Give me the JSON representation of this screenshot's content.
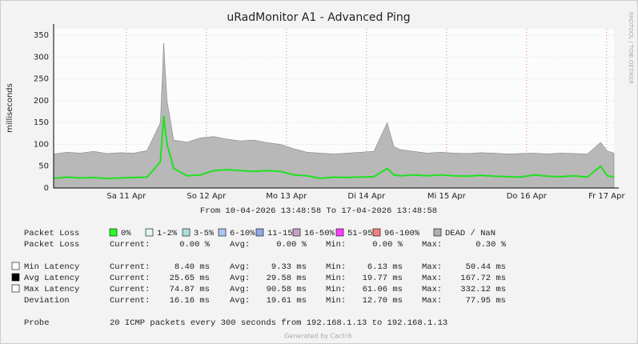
{
  "chart_data": {
    "type": "line",
    "title": "uRadMonitor A1 - Advanced Ping",
    "y_label": "milliseconds",
    "side_label": "RRDTOOL / TOBI OETIKER",
    "period": "From 10-04-2026 13:48:58 To 17-04-2026 13:48:58",
    "footer": "Generated by Cacti®",
    "xlim": [
      0,
      168
    ],
    "xticks": [
      {
        "value": 21.8,
        "label": "Sa 11 Apr"
      },
      {
        "value": 45.8,
        "label": "So 12 Apr"
      },
      {
        "value": 69.8,
        "label": "Mo 13 Apr"
      },
      {
        "value": 93.8,
        "label": "Di 14 Apr"
      },
      {
        "value": 117.8,
        "label": "Mi 15 Apr"
      },
      {
        "value": 141.8,
        "label": "Do 16 Apr"
      },
      {
        "value": 165.8,
        "label": "Fr 17 Apr"
      }
    ],
    "ylim": [
      0,
      365
    ],
    "yticks": [
      0,
      50,
      100,
      150,
      200,
      250,
      300,
      350
    ],
    "grid": true,
    "x": [
      0,
      4,
      8,
      12,
      16,
      20,
      24,
      28,
      32,
      33,
      34,
      36,
      40,
      44,
      48,
      52,
      56,
      60,
      64,
      68,
      72,
      76,
      80,
      84,
      88,
      92,
      96,
      100,
      102,
      104,
      108,
      112,
      116,
      120,
      124,
      128,
      132,
      136,
      140,
      144,
      148,
      152,
      156,
      160,
      164,
      166,
      168
    ],
    "series": [
      {
        "color": "#b8b8b8",
        "values": [
          78,
          82,
          80,
          84,
          79,
          81,
          80,
          86,
          150,
          332,
          200,
          110,
          105,
          115,
          118,
          112,
          108,
          110,
          104,
          100,
          90,
          82,
          80,
          78,
          80,
          82,
          84,
          150,
          95,
          88,
          84,
          80,
          82,
          80,
          79,
          81,
          80,
          78,
          79,
          80,
          78,
          80,
          79,
          78,
          105,
          85,
          80
        ]
      },
      {
        "color": "#20e020",
        "values": [
          22,
          25,
          23,
          24,
          22,
          23,
          24,
          25,
          60,
          165,
          100,
          45,
          28,
          30,
          40,
          42,
          40,
          38,
          40,
          38,
          30,
          28,
          22,
          25,
          24,
          25,
          26,
          45,
          30,
          28,
          30,
          28,
          30,
          28,
          27,
          29,
          27,
          26,
          25,
          30,
          27,
          26,
          28,
          25,
          50,
          28,
          25
        ]
      }
    ],
    "loss_label": "Packet Loss",
    "loss_legend": [
      {
        "name": "0%",
        "color": "#26ff26"
      },
      {
        "name": "1-2%",
        "color": "#e0f4f4"
      },
      {
        "name": "3-5%",
        "color": "#a8e0e0"
      },
      {
        "name": "6-10%",
        "color": "#a8c8f0"
      },
      {
        "name": "11-15%",
        "color": "#90a8e8"
      },
      {
        "name": "16-50%",
        "color": "#c8a0c8"
      },
      {
        "name": "51-95%",
        "color": "#ff40ff"
      },
      {
        "name": "96-100%",
        "color": "#f08080"
      },
      {
        "name": "DEAD / NaN",
        "color": "#b0b0b0"
      }
    ],
    "stat_headers": [
      "Current:",
      "Avg:",
      "Min:",
      "Max:"
    ],
    "stats": [
      {
        "label": "Packet Loss",
        "values": [
          "0.00 %",
          "0.00 %",
          "0.00 %",
          "0.30 %"
        ]
      },
      {
        "label": "Min Latency",
        "swatch": "#ffffff",
        "values": [
          "8.40 ms",
          "9.33 ms",
          "6.13 ms",
          "50.44 ms"
        ]
      },
      {
        "label": "Avg Latency",
        "swatch": "#000000",
        "values": [
          "25.65 ms",
          "29.58 ms",
          "19.77 ms",
          "167.72 ms"
        ]
      },
      {
        "label": "Max Latency",
        "swatch": "#ffffff",
        "values": [
          "74.87 ms",
          "90.58 ms",
          "61.06 ms",
          "332.12 ms"
        ]
      },
      {
        "label": "Deviation",
        "values": [
          "16.16 ms",
          "19.61 ms",
          "12.70 ms",
          "77.95 ms"
        ]
      }
    ],
    "probe_label": "Probe",
    "probe": "20 ICMP packets every 300 seconds from 192.168.1.13 to 192.168.1.13"
  }
}
